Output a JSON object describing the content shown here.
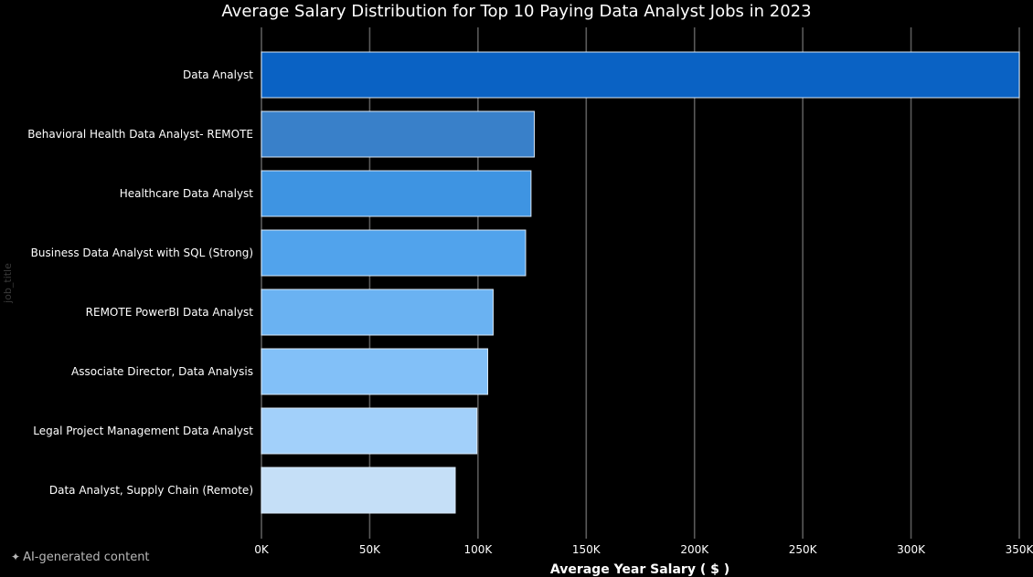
{
  "chart_data": {
    "type": "bar",
    "orientation": "horizontal",
    "title": "Average Salary Distribution for Top 10 Paying Data Analyst Jobs in 2023",
    "xlabel": "Average Year Salary ( $ )",
    "ylabel": "job_title",
    "categories": [
      "Data Analyst",
      "Behavioral Health Data Analyst- REMOTE",
      "Healthcare Data Analyst",
      "Business Data Analyst with SQL (Strong)",
      "REMOTE PowerBI Data Analyst",
      "Associate Director, Data Analysis",
      "Legal Project Management Data Analyst",
      "Data Analyst, Supply Chain (Remote)"
    ],
    "values": [
      350000,
      126000,
      124500,
      122000,
      107000,
      104500,
      99500,
      89500
    ],
    "xlim": [
      0,
      350000
    ],
    "xticks": [
      0,
      50000,
      100000,
      150000,
      200000,
      250000,
      300000,
      350000
    ],
    "xtick_labels": [
      "0K",
      "50K",
      "100K",
      "150K",
      "200K",
      "250K",
      "300K",
      "350K"
    ],
    "grid": true,
    "bar_colors": [
      "#0a62c4",
      "#3980c9",
      "#3e94e2",
      "#51a3ec",
      "#6ab2f2",
      "#82c0f8",
      "#a2d0fa",
      "#c5dff7"
    ]
  },
  "footer": {
    "ai_note_icon": "sparkle-icon",
    "ai_note": "AI-generated content"
  }
}
